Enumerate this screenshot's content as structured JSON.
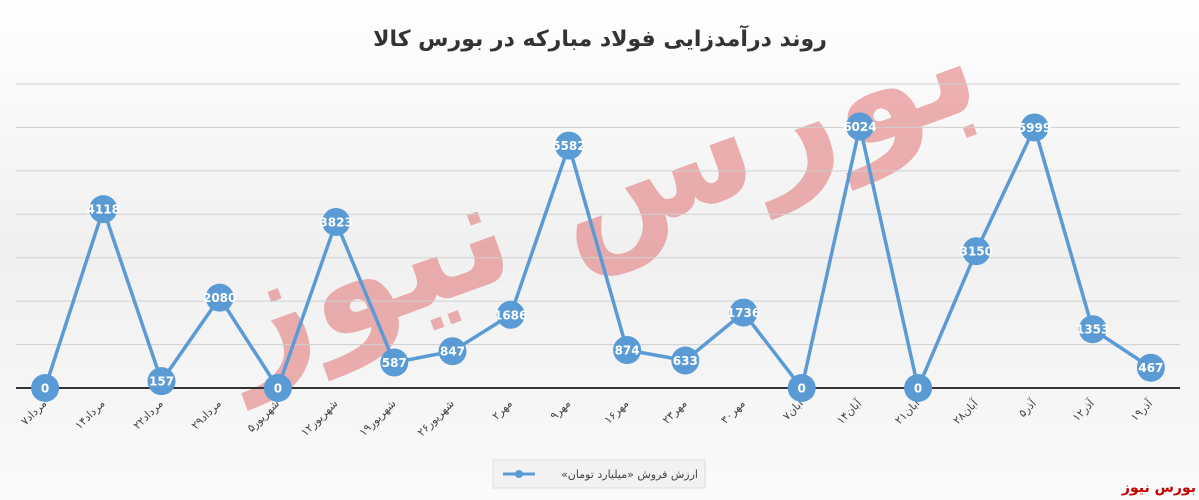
{
  "chart_data": {
    "type": "line",
    "title": "روند درآمدزایی فولاد مبارکه در بورس کالا",
    "categories": [
      "۷مرداد",
      "۱۴مرداد",
      "۲۲مرداد",
      "۲۹مرداد",
      "۵شهریور",
      "۱۲شهریور",
      "۱۹شهریور",
      "۲۶شهریور",
      "۲مهر",
      "۹مهر",
      "۱۶مهر",
      "۲۳مهر",
      "۳۰مهر",
      "۷آبان",
      "۱۴آبان",
      "۲۱آبان",
      "۲۸آبان",
      "۵آذر",
      "۱۲آذر",
      "۱۹آذر"
    ],
    "series": [
      {
        "name": "ارزش فروش «میلیارد تومان»",
        "color": "#5b9bd5",
        "values": [
          0,
          4118,
          157,
          2080,
          0,
          3823,
          587,
          847,
          1686,
          5582,
          874,
          633,
          1736,
          0,
          6024,
          0,
          3150,
          5999,
          1353,
          467
        ]
      }
    ],
    "ylim": [
      0,
      7000
    ],
    "yticks": [
      0,
      1000,
      2000,
      3000,
      4000,
      5000,
      6000,
      7000
    ],
    "grid": true,
    "legend": "bottom",
    "watermark": "بورس نیوز"
  }
}
